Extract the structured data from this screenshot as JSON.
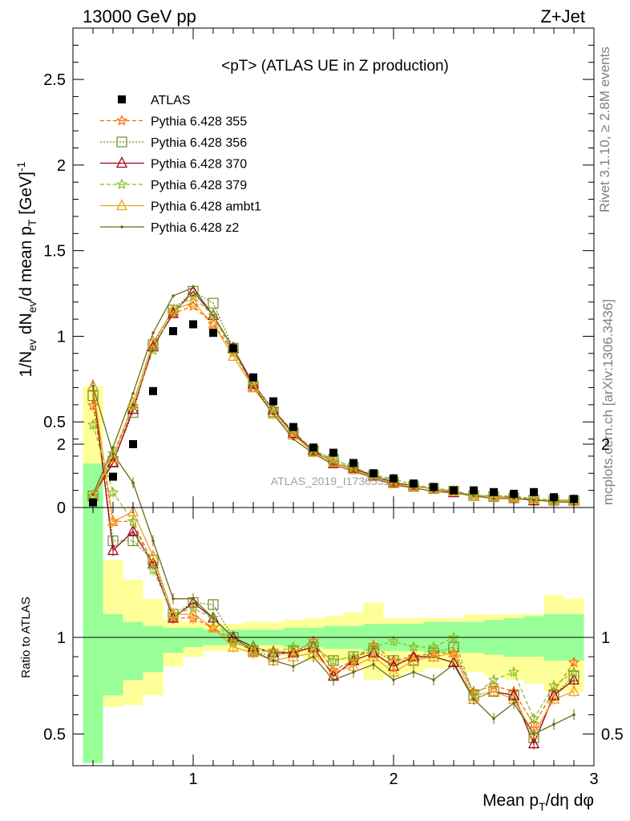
{
  "header": {
    "left": "13000 GeV pp",
    "right": "Z+Jet"
  },
  "side": {
    "rivet": "Rivet 3.1.10, ≥ 2.8M events",
    "mcplots": "mcplots.cern.ch [arXiv:1306.3436]"
  },
  "chart_data": {
    "type": "line",
    "title": "<pT> (ATLAS UE in Z production)",
    "watermark": "ATLAS_2019_I1736531",
    "xlabel": "Mean p_T/dη dφ",
    "ylabel": "1/N_ev dN_ev/d mean p_T [GeV]^-1",
    "ratio_ylabel": "Ratio to ATLAS",
    "xlim": [
      0.4,
      3.0
    ],
    "ylim": [
      0,
      2.8
    ],
    "ratio_ylim": [
      0.35,
      2.3
    ],
    "xticks": [
      1,
      2,
      3
    ],
    "yticks": [
      0,
      0.5,
      1,
      1.5,
      2,
      2.5
    ],
    "ratio_yticks": [
      0.5,
      1,
      2
    ],
    "x": [
      0.5,
      0.6,
      0.7,
      0.8,
      0.9,
      1.0,
      1.1,
      1.2,
      1.3,
      1.4,
      1.5,
      1.6,
      1.7,
      1.8,
      1.9,
      2.0,
      2.1,
      2.2,
      2.3,
      2.4,
      2.5,
      2.6,
      2.7,
      2.8,
      2.9
    ],
    "data": {
      "name": "ATLAS",
      "values": [
        0.03,
        0.18,
        0.37,
        0.68,
        1.03,
        1.07,
        1.02,
        0.93,
        0.76,
        0.62,
        0.47,
        0.35,
        0.32,
        0.26,
        0.2,
        0.17,
        0.14,
        0.12,
        0.1,
        0.1,
        0.09,
        0.08,
        0.09,
        0.06,
        0.05
      ]
    },
    "series": [
      {
        "name": "Pythia 6.428 355",
        "color": "#ff6600",
        "dash": "5,3",
        "marker": "star",
        "ratio": [
          2.2,
          1.6,
          1.6,
          1.38,
          1.1,
          1.1,
          1.05,
          0.98,
          0.93,
          0.93,
          0.92,
          0.98,
          0.83,
          0.88,
          0.96,
          0.88,
          0.9,
          0.92,
          0.92,
          0.72,
          0.75,
          0.72,
          0.55,
          0.72,
          0.87
        ]
      },
      {
        "name": "Pythia 6.428 356",
        "color": "#6b8e23",
        "dash": "2,2",
        "marker": "square",
        "ratio": [
          2.25,
          1.5,
          1.5,
          1.4,
          1.12,
          1.18,
          1.17,
          1.0,
          0.93,
          0.9,
          0.93,
          0.95,
          0.88,
          0.9,
          0.93,
          0.88,
          0.88,
          0.92,
          0.95,
          0.7,
          0.72,
          0.7,
          0.48,
          0.7,
          0.8
        ]
      },
      {
        "name": "Pythia 6.428 370",
        "color": "#a00020",
        "dash": "",
        "marker": "triangle",
        "ratio": [
          2.3,
          1.45,
          1.55,
          1.38,
          1.1,
          1.18,
          1.1,
          1.0,
          0.95,
          0.92,
          0.92,
          0.95,
          0.8,
          0.88,
          0.92,
          0.85,
          0.9,
          0.9,
          0.87,
          0.68,
          0.72,
          0.7,
          0.45,
          0.7,
          0.78
        ]
      },
      {
        "name": "Pythia 6.428 379",
        "color": "#8cbf26",
        "dash": "5,3",
        "marker": "star",
        "ratio": [
          2.1,
          1.75,
          1.6,
          1.35,
          1.12,
          1.15,
          1.1,
          0.97,
          0.95,
          0.92,
          0.95,
          0.95,
          0.88,
          0.9,
          0.95,
          0.98,
          0.95,
          0.95,
          1.0,
          0.7,
          0.78,
          0.82,
          0.58,
          0.75,
          0.82
        ]
      },
      {
        "name": "Pythia 6.428 ambt1",
        "color": "#f0a020",
        "dash": "",
        "marker": "triangle",
        "ratio": [
          2.3,
          1.6,
          1.65,
          1.42,
          1.12,
          1.12,
          1.05,
          0.95,
          0.92,
          0.88,
          0.9,
          0.92,
          0.82,
          0.85,
          0.9,
          0.82,
          0.88,
          0.9,
          0.92,
          0.68,
          0.72,
          0.68,
          0.5,
          0.68,
          0.72
        ]
      },
      {
        "name": "Pythia 6.428 z2",
        "color": "#6b6b10",
        "dash": "",
        "marker": "dot",
        "ratio": [
          2.5,
          1.95,
          1.8,
          1.5,
          1.2,
          1.2,
          1.1,
          1.0,
          0.93,
          0.88,
          0.85,
          0.9,
          0.78,
          0.82,
          0.86,
          0.78,
          0.82,
          0.78,
          0.86,
          0.68,
          0.58,
          0.66,
          0.5,
          0.55,
          0.6
        ]
      }
    ],
    "band_inner": [
      1.9,
      1.12,
      1.08,
      1.06,
      1.05,
      1.05,
      1.04,
      1.04,
      1.04,
      1.04,
      1.05,
      1.05,
      1.06,
      1.06,
      1.07,
      1.07,
      1.07,
      1.08,
      1.08,
      1.08,
      1.09,
      1.1,
      1.11,
      1.12,
      1.12
    ],
    "band_outer": [
      2.3,
      1.4,
      1.3,
      1.2,
      1.09,
      1.08,
      1.07,
      1.07,
      1.08,
      1.08,
      1.09,
      1.1,
      1.11,
      1.13,
      1.18,
      1.1,
      1.1,
      1.1,
      1.1,
      1.12,
      1.12,
      1.12,
      1.12,
      1.22,
      1.2
    ],
    "band_inner_low": [
      0.3,
      0.7,
      0.78,
      0.82,
      0.92,
      0.95,
      0.96,
      0.96,
      0.96,
      0.96,
      0.95,
      0.95,
      0.94,
      0.94,
      0.93,
      0.93,
      0.93,
      0.92,
      0.92,
      0.92,
      0.91,
      0.9,
      0.9,
      0.88,
      0.88
    ],
    "band_outer_low": [
      0.3,
      0.64,
      0.65,
      0.7,
      0.85,
      0.9,
      0.93,
      0.93,
      0.92,
      0.92,
      0.9,
      0.88,
      0.87,
      0.85,
      0.78,
      0.8,
      0.82,
      0.84,
      0.85,
      0.82,
      0.8,
      0.78,
      0.76,
      0.72,
      0.72
    ],
    "colors": {
      "band_inner": "#99ff99",
      "band_outer": "#ffff99"
    }
  }
}
